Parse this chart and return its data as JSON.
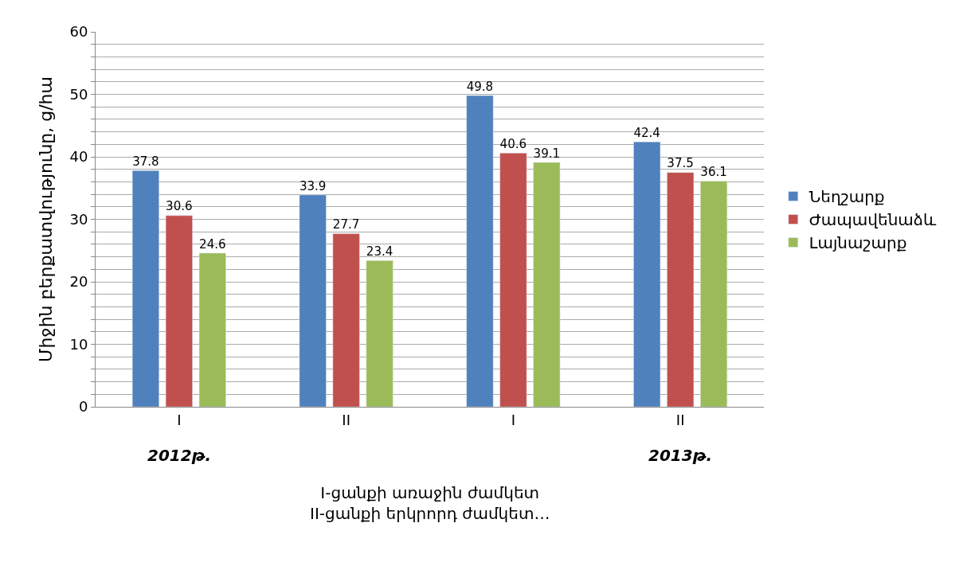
{
  "chart_data": {
    "type": "bar",
    "categories": [
      "I",
      "II",
      "I",
      "II"
    ],
    "series": [
      {
        "name": "Նեղշարք",
        "color": "#4f81bd",
        "values": [
          37.8,
          33.9,
          49.8,
          42.4
        ]
      },
      {
        "name": "Ժապավենաձև",
        "color": "#c0504d",
        "values": [
          30.6,
          27.7,
          40.6,
          37.5
        ]
      },
      {
        "name": "Լայնաշարք",
        "color": "#9bbb59",
        "values": [
          24.6,
          23.4,
          39.1,
          36.1
        ]
      }
    ],
    "xlabel": "I-ցանքի առաջին ժամկետ\nII-ցանքի երկրորդ ժամկետ…",
    "ylabel": "Միջին բերքատվությունը, ց/հա",
    "annotations": [
      "2012թ.",
      "2013թ."
    ],
    "ylim": [
      0,
      60
    ],
    "yticks": [
      0,
      {
        "value": 2,
        "label": null
      },
      {
        "value": 4,
        "label": null
      },
      {
        "value": 6,
        "label": null
      },
      {
        "value": 8,
        "label": null
      },
      10,
      {
        "value": 12,
        "label": null
      },
      {
        "value": 14,
        "label": null
      },
      {
        "value": 16,
        "label": null
      },
      {
        "value": 18,
        "label": null
      },
      20,
      {
        "value": 22,
        "label": null
      },
      {
        "value": 24,
        "label": null
      },
      {
        "value": 26,
        "label": null
      },
      {
        "value": 28,
        "label": null
      },
      30,
      {
        "value": 32,
        "label": null
      },
      {
        "value": 34,
        "label": null
      },
      {
        "value": 36,
        "label": null
      },
      {
        "value": 38,
        "label": null
      },
      40,
      {
        "value": 42,
        "label": null
      },
      {
        "value": 44,
        "label": null
      },
      {
        "value": 46,
        "label": null
      },
      {
        "value": 48,
        "label": null
      },
      50,
      {
        "value": 52,
        "label": null
      },
      {
        "value": 54,
        "label": null
      },
      {
        "value": 56,
        "label": null
      },
      {
        "value": 58,
        "label": null
      },
      60
    ],
    "grid": "y",
    "legend": "right",
    "data_labels": true
  }
}
